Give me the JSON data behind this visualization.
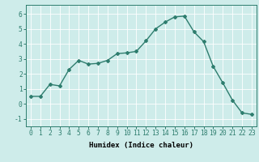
{
  "x": [
    0,
    1,
    2,
    3,
    4,
    5,
    6,
    7,
    8,
    9,
    10,
    11,
    12,
    13,
    14,
    15,
    16,
    17,
    18,
    19,
    20,
    21,
    22,
    23
  ],
  "y": [
    0.5,
    0.5,
    1.3,
    1.2,
    2.3,
    2.9,
    2.65,
    2.7,
    2.9,
    3.35,
    3.4,
    3.5,
    4.2,
    5.0,
    5.45,
    5.8,
    5.85,
    4.8,
    4.15,
    2.5,
    1.4,
    0.25,
    -0.6,
    -0.7
  ],
  "xlim": [
    -0.5,
    23.5
  ],
  "ylim": [
    -1.5,
    6.6
  ],
  "yticks": [
    -1,
    0,
    1,
    2,
    3,
    4,
    5,
    6
  ],
  "xticks": [
    0,
    1,
    2,
    3,
    4,
    5,
    6,
    7,
    8,
    9,
    10,
    11,
    12,
    13,
    14,
    15,
    16,
    17,
    18,
    19,
    20,
    21,
    22,
    23
  ],
  "xlabel": "Humidex (Indice chaleur)",
  "line_color": "#2e7d6e",
  "marker": "D",
  "marker_size": 2.0,
  "line_width": 1.0,
  "bg_color": "#ceecea",
  "grid_color": "#ffffff",
  "xlabel_fontsize": 6.5,
  "tick_fontsize": 5.8
}
